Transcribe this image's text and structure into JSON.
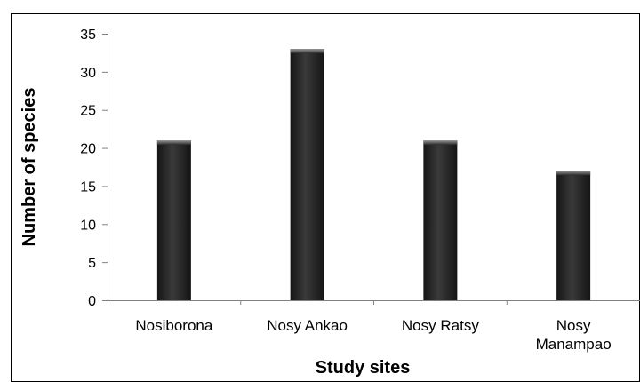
{
  "chart_data": {
    "type": "bar",
    "title": "",
    "xlabel": "Study sites",
    "ylabel": "Number of species",
    "categories": [
      [
        "Nosiborona"
      ],
      [
        "Nosy Ankao"
      ],
      [
        "Nosy Ratsy"
      ],
      [
        "Nosy",
        "Manampao"
      ]
    ],
    "values": [
      21,
      33,
      21,
      17
    ],
    "ylim": [
      0,
      35
    ],
    "yticks": [
      "0",
      "5",
      "10",
      "15",
      "20",
      "25",
      "30",
      "35"
    ],
    "grid": false,
    "legend": "none",
    "colors": {
      "bar": "#3a3a3a",
      "bar_highlight": "#8c8c8c",
      "bar_shadow": "#151515"
    }
  }
}
